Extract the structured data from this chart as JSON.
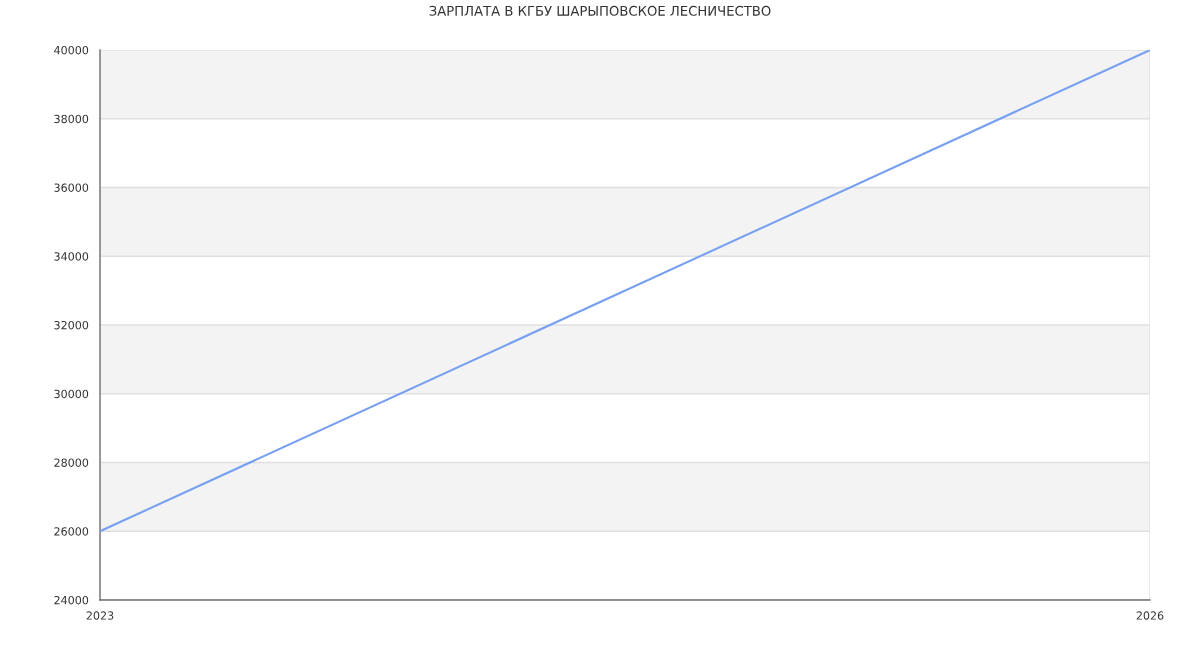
{
  "chart_data": {
    "type": "line",
    "title": "ЗАРПЛАТА В КГБУ ШАРЫПОВСКОЕ ЛЕСНИЧЕСТВО",
    "x": [
      "2023",
      "2026"
    ],
    "series": [
      {
        "color": "#78a0f0",
        "values": [
          26000,
          40000
        ]
      }
    ],
    "xlim": [
      "2023",
      "2026"
    ],
    "xticks": [
      "2023",
      "2026"
    ],
    "ylim": [
      24000,
      40000
    ],
    "yticks": [
      24000,
      26000,
      28000,
      30000,
      32000,
      34000,
      36000,
      38000,
      40000
    ],
    "bands": [
      {
        "axis": "y",
        "from": 26000,
        "to": 28000,
        "color": "#f3f3f3"
      },
      {
        "axis": "y",
        "from": 30000,
        "to": 32000,
        "color": "#f3f3f3"
      },
      {
        "axis": "y",
        "from": 34000,
        "to": 36000,
        "color": "#f3f3f3"
      },
      {
        "axis": "y",
        "from": 38000,
        "to": 40000,
        "color": "#f3f3f3"
      }
    ],
    "grid": true,
    "marker": "none",
    "line_style": "solid"
  }
}
